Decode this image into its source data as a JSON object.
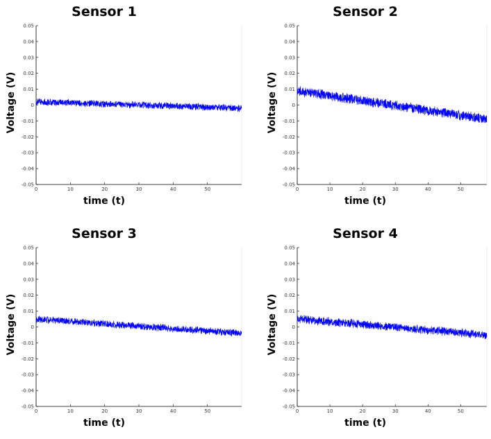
{
  "chart_data": [
    {
      "type": "line",
      "title": "Sensor 1",
      "xlabel": "time (t)",
      "ylabel": "Voltage (V)",
      "xlim": [
        0,
        60
      ],
      "ylim": [
        -0.05,
        0.05
      ],
      "xticks": [
        0,
        10,
        20,
        30,
        40,
        50
      ],
      "yticks": [
        0.05,
        0.04,
        0.03,
        0.02,
        0.01,
        0,
        -0.01,
        -0.02,
        -0.03,
        -0.04,
        -0.05
      ],
      "grid": false,
      "series": [
        {
          "color": "#0000ff",
          "trend": {
            "x": [
              0,
              60
            ],
            "y": [
              0.002,
              -0.002
            ]
          },
          "noise_amplitude": 0.0025
        }
      ]
    },
    {
      "type": "line",
      "title": "Sensor 2",
      "xlabel": "time (t)",
      "ylabel": "Voltage (V)",
      "xlim": [
        0,
        58
      ],
      "ylim": [
        -0.05,
        0.05
      ],
      "xticks": [
        0,
        10,
        20,
        30,
        40,
        50
      ],
      "yticks": [
        0.05,
        0.04,
        0.03,
        0.02,
        0.01,
        0,
        -0.01,
        -0.02,
        -0.03,
        -0.04,
        -0.05
      ],
      "grid": false,
      "series": [
        {
          "color": "#0000ff",
          "trend": {
            "x": [
              0,
              58
            ],
            "y": [
              0.009,
              -0.009
            ]
          },
          "noise_amplitude": 0.0035
        }
      ]
    },
    {
      "type": "line",
      "title": "Sensor 3",
      "xlabel": "time (t)",
      "ylabel": "Voltage (V)",
      "xlim": [
        0,
        60
      ],
      "ylim": [
        -0.05,
        0.05
      ],
      "xticks": [
        0,
        10,
        20,
        30,
        40,
        50
      ],
      "yticks": [
        0.05,
        0.04,
        0.03,
        0.02,
        0.01,
        0,
        -0.01,
        -0.02,
        -0.03,
        -0.04,
        -0.05
      ],
      "grid": false,
      "series": [
        {
          "color": "#0000ff",
          "trend": {
            "x": [
              0,
              60
            ],
            "y": [
              0.005,
              -0.004
            ]
          },
          "noise_amplitude": 0.0025
        }
      ]
    },
    {
      "type": "line",
      "title": "Sensor 4",
      "xlabel": "time (t)",
      "ylabel": "Voltage (V)",
      "xlim": [
        0,
        58
      ],
      "ylim": [
        -0.05,
        0.05
      ],
      "xticks": [
        0,
        10,
        20,
        30,
        40,
        50
      ],
      "yticks": [
        0.05,
        0.04,
        0.03,
        0.02,
        0.01,
        0,
        -0.01,
        -0.02,
        -0.03,
        -0.04,
        -0.05
      ],
      "grid": false,
      "series": [
        {
          "color": "#0000ff",
          "trend": {
            "x": [
              0,
              58
            ],
            "y": [
              0.005,
              -0.005
            ]
          },
          "noise_amplitude": 0.003
        }
      ]
    }
  ]
}
